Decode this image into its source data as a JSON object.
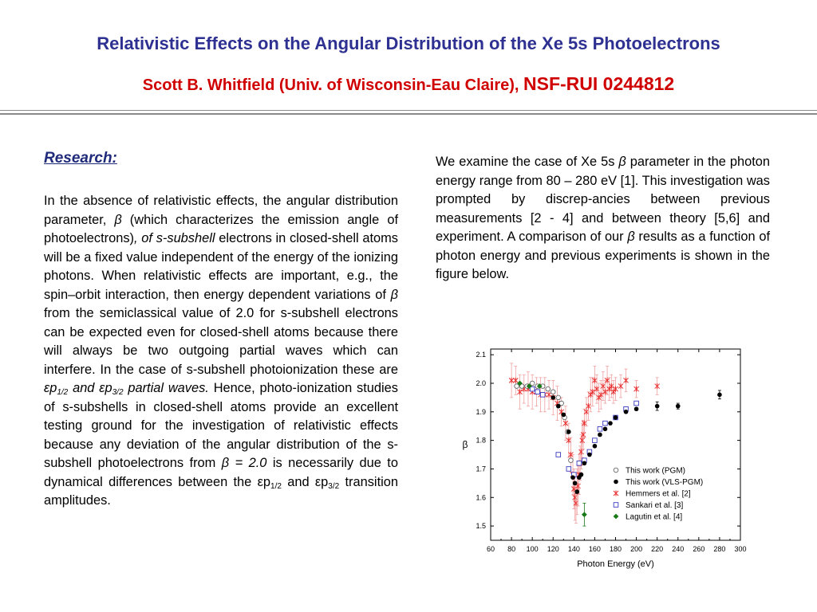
{
  "header": {
    "title": "Relativistic Effects on the Angular Distribution of  the Xe 5s Photoelectrons",
    "author": "Scott B. Whitfield (Univ. of Wisconsin-Eau Claire), ",
    "grant": "NSF-RUI 0244812"
  },
  "research": {
    "heading": "Research:",
    "p1": "In the absence of relativistic effects, the angular distribution parameter, ",
    "beta": "β",
    "p2": " (which characterizes the emission angle of photoelectrons)",
    "p3": ", of s-subshell",
    "p4": " electrons in closed-shell atoms will be a fixed value independent of the energy of the ionizing photons.  When relativistic effects are important, e.g., the spin–orbit interaction, then energy dependent variations of ",
    "p5": "  from the semiclassical value of 2.0 for s-subshell electrons can be expected even for closed-shell atoms because there will always be two outgoing partial waves which can interfere. In the case of s-subshell photoionization these are ",
    "ep": "εp",
    "sub12": "1/2",
    "and": " and ",
    "sub32": "3/2",
    "partial_waves": " partial waves.",
    "p6": " Hence, photo-ionization studies of s-subshells in closed-shell atoms provide an excellent testing ground for the investigation of relativistic effects because any deviation of the angular distribution of the s-subshell photoelectrons from ",
    "beta_eq": "β = 2.0",
    "p7": " is necessarily due to dynamical differences between the ",
    "p8": " transition amplitudes."
  },
  "right_text": {
    "p1": "We examine the case of Xe 5s ",
    "beta": "β",
    "p2": " parameter in the photon energy range from 80 – 280 eV [1]. This investigation was prompted by discrep-ancies between previous measurements [2 - 4] and between theory [5,6] and experiment. A comparison of our ",
    "p3": " results as a function of photon energy and previous experiments is shown in the figure below."
  },
  "chart_data": {
    "type": "scatter",
    "xlabel": "Photon Energy (eV)",
    "ylabel": "β",
    "xlim": [
      60,
      300
    ],
    "ylim": [
      1.45,
      2.12
    ],
    "xticks": [
      60,
      80,
      100,
      120,
      140,
      160,
      180,
      200,
      220,
      240,
      260,
      280,
      300
    ],
    "yticks": [
      1.5,
      1.6,
      1.7,
      1.8,
      1.9,
      2.0,
      2.1
    ],
    "legend_position": "bottom-right",
    "series": [
      {
        "name": "This work (PGM)",
        "marker": "open-circle",
        "color": "#666666",
        "x": [
          85,
          90,
          95,
          100,
          105,
          110,
          115,
          120,
          125,
          128,
          131,
          134,
          137
        ],
        "y": [
          1.99,
          1.99,
          1.99,
          2.0,
          1.99,
          1.99,
          1.98,
          1.97,
          1.95,
          1.93,
          1.88,
          1.83,
          1.73
        ]
      },
      {
        "name": "This work (VLS-PGM)",
        "marker": "filled-circle",
        "color": "#000000",
        "x": [
          120,
          125,
          130,
          135,
          139,
          141,
          143,
          145,
          147,
          150,
          155,
          160,
          165,
          170,
          175,
          180,
          190,
          200,
          220,
          240,
          280
        ],
        "y": [
          1.95,
          1.92,
          1.89,
          1.83,
          1.67,
          1.65,
          1.62,
          1.67,
          1.68,
          1.72,
          1.75,
          1.78,
          1.82,
          1.84,
          1.86,
          1.88,
          1.9,
          1.91,
          1.92,
          1.92,
          1.96
        ],
        "err": [
          0.005,
          0.005,
          0.005,
          0.005,
          0.005,
          0.005,
          0.005,
          0.005,
          0.005,
          0.005,
          0.005,
          0.005,
          0.005,
          0.005,
          0.005,
          0.005,
          0.005,
          0.005,
          0.015,
          0.01,
          0.015
        ]
      },
      {
        "name": "Hemmers et al. [2]",
        "marker": "asterisk",
        "color": "#e83030",
        "x": [
          80,
          84,
          88,
          92,
          96,
          100,
          104,
          108,
          112,
          116,
          120,
          124,
          128,
          132,
          135,
          137,
          139,
          140,
          141,
          142,
          143,
          144,
          145,
          146,
          147,
          148,
          149,
          150,
          152,
          154,
          156,
          158,
          160,
          162,
          164,
          166,
          168,
          170,
          172,
          174,
          176,
          178,
          180,
          185,
          190,
          200,
          220
        ],
        "y": [
          2.01,
          2.01,
          1.97,
          1.98,
          1.98,
          1.97,
          1.97,
          1.96,
          1.96,
          1.96,
          1.95,
          1.93,
          1.9,
          1.86,
          1.8,
          1.75,
          1.68,
          1.63,
          1.6,
          1.58,
          1.62,
          1.64,
          1.68,
          1.72,
          1.76,
          1.8,
          1.82,
          1.86,
          1.9,
          1.92,
          1.96,
          1.97,
          2.01,
          1.98,
          1.95,
          1.96,
          1.99,
          1.97,
          2.01,
          1.98,
          1.99,
          1.97,
          1.98,
          1.99,
          2.01,
          1.98,
          1.99
        ],
        "err": [
          0.06,
          0.05,
          0.06,
          0.05,
          0.06,
          0.06,
          0.05,
          0.06,
          0.06,
          0.05,
          0.06,
          0.06,
          0.05,
          0.06,
          0.06,
          0.06,
          0.07,
          0.07,
          0.08,
          0.07,
          0.08,
          0.07,
          0.07,
          0.06,
          0.06,
          0.06,
          0.05,
          0.05,
          0.05,
          0.05,
          0.06,
          0.05,
          0.05,
          0.05,
          0.05,
          0.05,
          0.05,
          0.04,
          0.05,
          0.04,
          0.04,
          0.04,
          0.04,
          0.04,
          0.04,
          0.03,
          0.03
        ]
      },
      {
        "name": "Sankari et al. [3]",
        "marker": "open-square",
        "color": "#3a3ac0",
        "x": [
          100,
          105,
          110,
          125,
          135,
          140,
          145,
          150,
          155,
          160,
          165,
          170,
          180,
          190,
          200
        ],
        "y": [
          1.98,
          1.97,
          1.96,
          1.75,
          1.7,
          1.68,
          1.72,
          1.73,
          1.76,
          1.8,
          1.84,
          1.86,
          1.88,
          1.91,
          1.93
        ]
      },
      {
        "name": "Lagutin et al. [4]",
        "marker": "filled-diamond",
        "color": "#1a7a1a",
        "x": [
          88,
          97,
          107,
          150
        ],
        "y": [
          2.0,
          1.99,
          1.99,
          1.54
        ],
        "err": [
          0,
          0,
          0,
          0.04
        ]
      }
    ]
  }
}
